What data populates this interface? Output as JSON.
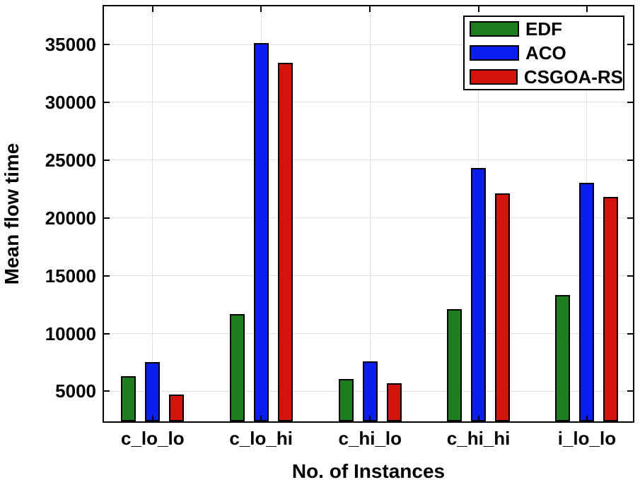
{
  "chart_data": {
    "type": "bar",
    "title": "",
    "xlabel": "No. of Instances",
    "ylabel": "Mean flow time",
    "categories": [
      "c_lo_lo",
      "c_lo_hi",
      "c_hi_lo",
      "c_hi_hi",
      "i_lo_lo"
    ],
    "series": [
      {
        "name": "EDF",
        "color": "#1e7d1e",
        "values": [
          6300,
          11700,
          6050,
          12100,
          13300
        ]
      },
      {
        "name": "ACO",
        "color": "#0a1ef0",
        "values": [
          7550,
          35150,
          7600,
          24300,
          23050
        ]
      },
      {
        "name": "CSGOA-RS",
        "color": "#d2140a",
        "values": [
          4700,
          33400,
          5700,
          22100,
          21800
        ]
      }
    ],
    "yticks": [
      5000,
      10000,
      15000,
      20000,
      25000,
      30000,
      35000
    ],
    "ytick_labels": [
      "5000",
      "10000",
      "15000",
      "20000",
      "25000",
      "30000",
      "35000"
    ],
    "ylim": [
      2400,
      38300
    ],
    "grid": true,
    "grid_color": "#dde2df",
    "axis_color": "#000000",
    "legend_position": "top-right"
  }
}
